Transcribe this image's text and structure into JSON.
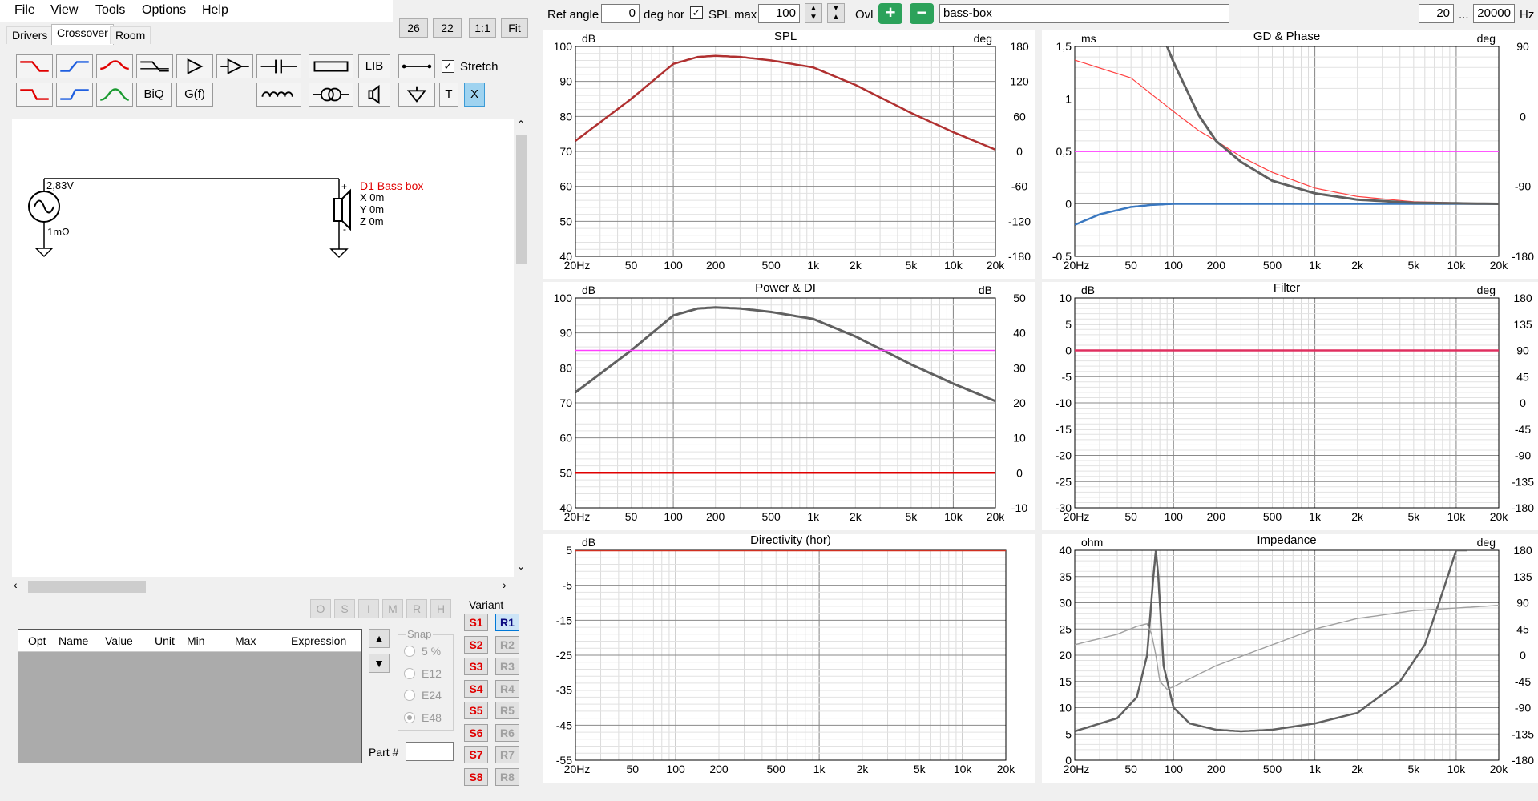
{
  "menu": {
    "file": "File",
    "view": "View",
    "tools": "Tools",
    "options": "Options",
    "help": "Help"
  },
  "left_buttons": {
    "b26": "26",
    "b22": "22",
    "b11": "1:1",
    "fit": "Fit"
  },
  "tabs": {
    "drivers": "Drivers",
    "crossover": "Crossover",
    "room": "Room"
  },
  "toolbar": {
    "lib": "LIB",
    "biq": "BiQ",
    "gf": "G(f)",
    "stretch": "Stretch",
    "t": "T",
    "x": "X"
  },
  "schematic": {
    "source_voltage": "2,83V",
    "source_resistance": "1mΩ",
    "driver_name": "D1 Bass box",
    "x": "X 0m",
    "y": "Y 0m",
    "z": "Z 0m"
  },
  "opt_buttons": [
    "O",
    "S",
    "I",
    "M",
    "R",
    "H"
  ],
  "variant_label": "Variant",
  "s_buttons": [
    "S1",
    "S2",
    "S3",
    "S4",
    "S5",
    "S6",
    "S7",
    "S8"
  ],
  "r_buttons": [
    "R1",
    "R2",
    "R3",
    "R4",
    "R5",
    "R6",
    "R7",
    "R8"
  ],
  "grid_headers": [
    "Opt",
    "Name",
    "Value",
    "Unit",
    "Min",
    "Max",
    "Expression"
  ],
  "snap": {
    "label": "Snap",
    "options": [
      "5 %",
      "E12",
      "E24",
      "E48"
    ],
    "selected": "E48"
  },
  "part_label": "Part #",
  "topbar": {
    "ref_angle_label": "Ref angle",
    "ref_angle_value": "0",
    "deg_hor": "deg hor",
    "spl_max_label": "SPL max",
    "spl_max_value": "100",
    "ovl": "Ovl",
    "project_name": "bass-box",
    "f_min": "20",
    "dots": "...",
    "f_max": "20000",
    "hz": "Hz"
  },
  "colors": {
    "red": "#e00000",
    "darkred": "#b03030",
    "gray": "#606060",
    "magenta": "#ff40ff",
    "blue": "#3a78c0",
    "pink": "#e03060",
    "accent": "#2ca02c"
  },
  "x_ticks": [
    "20Hz",
    "50",
    "100",
    "200",
    "500",
    "1k",
    "2k",
    "5k",
    "10k",
    "20k"
  ],
  "chart_data": [
    {
      "type": "line",
      "title": "SPL",
      "ylabel": "dB",
      "y2label": "deg",
      "ylim": [
        40,
        100
      ],
      "y2lim": [
        -180,
        180
      ],
      "yticks": [
        "100",
        "90",
        "80",
        "70",
        "60",
        "50",
        "40"
      ],
      "y2ticks": [
        "180",
        "120",
        "60",
        "0",
        "-60",
        "-120",
        "-180"
      ],
      "series": [
        {
          "x": [
            20,
            50,
            100,
            150,
            200,
            300,
            500,
            1000,
            2000,
            5000,
            10000,
            20000
          ],
          "values": [
            73,
            85,
            95,
            97,
            97.3,
            97,
            96,
            94,
            89,
            81,
            75.5,
            70.5
          ]
        }
      ]
    },
    {
      "type": "line",
      "title": "GD & Phase",
      "ylabel": "ms",
      "y2label": "deg",
      "ylim": [
        -0.5,
        1.5
      ],
      "y2lim": [
        -180,
        180
      ],
      "yticks": [
        "1,5",
        "1",
        "0,5",
        "0",
        "-0,5"
      ],
      "y2ticks": [
        "90",
        "0",
        "-90",
        "-180"
      ],
      "series": [
        {
          "x": [
            20,
            50,
            100,
            150,
            200,
            300,
            500,
            1000,
            2000,
            5000,
            10000,
            20000
          ],
          "values": [
            1.37,
            1.2,
            0.88,
            0.7,
            0.6,
            0.45,
            0.3,
            0.15,
            0.07,
            0.02,
            0.01,
            0
          ]
        },
        {
          "x": [
            20,
            30,
            50,
            70,
            100,
            200,
            500,
            1000,
            5000,
            20000
          ],
          "values": [
            -0.2,
            -0.1,
            -0.03,
            -0.01,
            0,
            0,
            0,
            0,
            0,
            0
          ]
        },
        {
          "x": [
            20,
            20000
          ],
          "values": [
            0.5,
            0.5
          ]
        },
        {
          "x": [
            90,
            100,
            150,
            200,
            300,
            500,
            1000,
            2000,
            5000,
            20000
          ],
          "values": [
            1.5,
            1.35,
            0.85,
            0.6,
            0.4,
            0.22,
            0.1,
            0.04,
            0.01,
            0
          ]
        }
      ]
    },
    {
      "type": "line",
      "title": "Power & DI",
      "ylabel": "dB",
      "y2label": "dB",
      "ylim": [
        40,
        100
      ],
      "y2lim": [
        -10,
        50
      ],
      "yticks": [
        "100",
        "90",
        "80",
        "70",
        "60",
        "50",
        "40"
      ],
      "y2ticks": [
        "50",
        "40",
        "30",
        "20",
        "10",
        "0",
        "-10"
      ],
      "series": [
        {
          "x": [
            20,
            50,
            100,
            150,
            200,
            300,
            500,
            1000,
            2000,
            5000,
            10000,
            20000
          ],
          "values": [
            73,
            85,
            95,
            97,
            97.3,
            97,
            96,
            94,
            89,
            81,
            75.5,
            70.5
          ]
        },
        {
          "x": [
            20,
            20000
          ],
          "values": [
            85,
            85
          ]
        },
        {
          "x": [
            20,
            20000
          ],
          "values": [
            50,
            50
          ]
        }
      ]
    },
    {
      "type": "line",
      "title": "Filter",
      "ylabel": "dB",
      "y2label": "deg",
      "ylim": [
        -30,
        10
      ],
      "y2lim": [
        -180,
        180
      ],
      "yticks": [
        "10",
        "5",
        "0",
        "-5",
        "-10",
        "-15",
        "-20",
        "-25",
        "-30"
      ],
      "y2ticks": [
        "180",
        "135",
        "90",
        "45",
        "0",
        "-45",
        "-90",
        "-135",
        "-180"
      ],
      "series": [
        {
          "x": [
            20,
            20000
          ],
          "values": [
            0,
            0
          ]
        }
      ]
    },
    {
      "type": "line",
      "title": "Directivity (hor)",
      "ylabel": "dB",
      "ylim": [
        -55,
        5
      ],
      "yticks": [
        "5",
        "-5",
        "-15",
        "-25",
        "-35",
        "-45",
        "-55"
      ],
      "series": [
        {
          "x": [
            20,
            20000
          ],
          "values": [
            5,
            5
          ]
        }
      ]
    },
    {
      "type": "line",
      "title": "Impedance",
      "ylabel": "ohm",
      "y2label": "deg",
      "ylim": [
        0,
        40
      ],
      "y2lim": [
        -180,
        180
      ],
      "yticks": [
        "40",
        "35",
        "30",
        "25",
        "20",
        "15",
        "10",
        "5",
        "0"
      ],
      "y2ticks": [
        "180",
        "135",
        "90",
        "45",
        "0",
        "-45",
        "-90",
        "-135",
        "-180"
      ],
      "series": [
        {
          "x": [
            20,
            40,
            55,
            65,
            72,
            75,
            78,
            85,
            100,
            130,
            200,
            300,
            500,
            1000,
            2000,
            4000,
            6000,
            8000,
            10000,
            12000
          ],
          "values": [
            5.5,
            8,
            12,
            20,
            35,
            40,
            35,
            18,
            10,
            7,
            5.8,
            5.5,
            5.8,
            7,
            9,
            15,
            22,
            32,
            40,
            40
          ]
        },
        {
          "x": [
            20,
            40,
            55,
            65,
            70,
            75,
            80,
            90,
            100,
            200,
            500,
            1000,
            2000,
            5000,
            10000,
            20000
          ],
          "values": [
            22,
            24,
            25.5,
            26,
            24,
            20,
            15,
            13.5,
            14,
            18,
            22,
            25,
            27,
            28.5,
            29,
            29.5
          ]
        }
      ]
    }
  ]
}
